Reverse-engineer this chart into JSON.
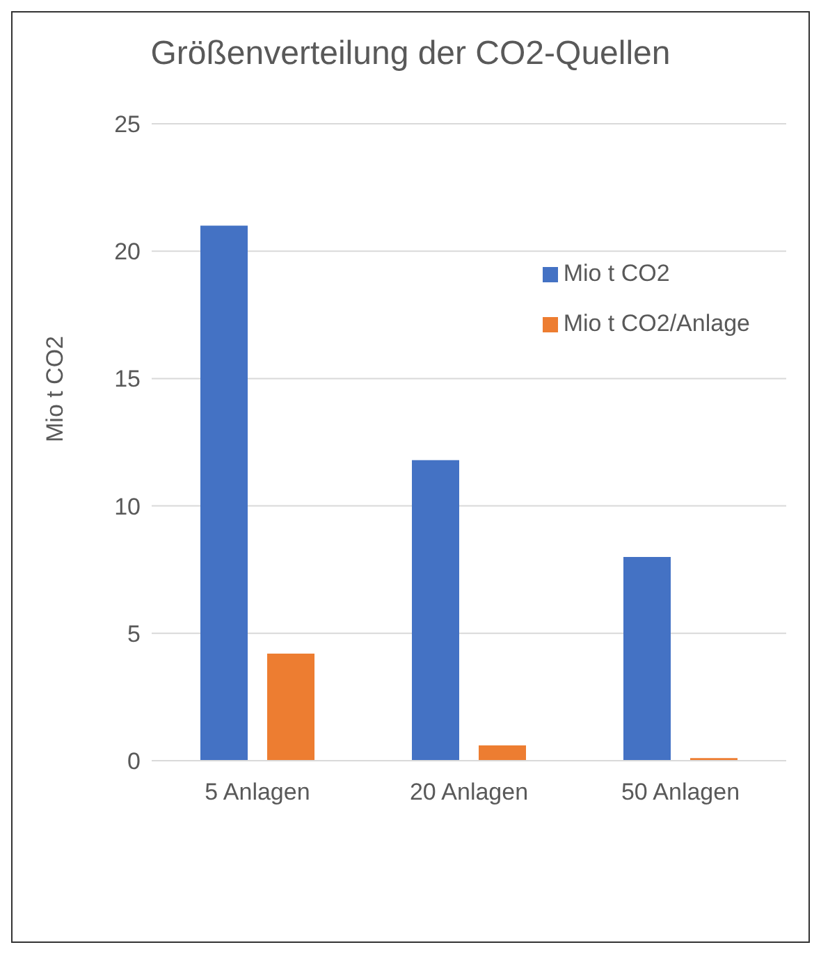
{
  "chart_data": {
    "type": "bar",
    "title": "Größenverteilung der CO2-Quellen",
    "ylabel": "Mio t CO2",
    "categories": [
      "5 Anlagen",
      "20 Anlagen",
      "50 Anlagen"
    ],
    "series": [
      {
        "name": "Mio t CO2",
        "color": "#4472c4",
        "values": [
          21,
          11.8,
          8
        ]
      },
      {
        "name": "Mio t CO2/Anlage",
        "color": "#ed7d31",
        "values": [
          4.2,
          0.6,
          0.1
        ]
      }
    ],
    "ylim": [
      0,
      25
    ],
    "yticks": [
      0,
      5,
      10,
      15,
      20,
      25
    ],
    "grid": "y",
    "legend": "top right"
  }
}
